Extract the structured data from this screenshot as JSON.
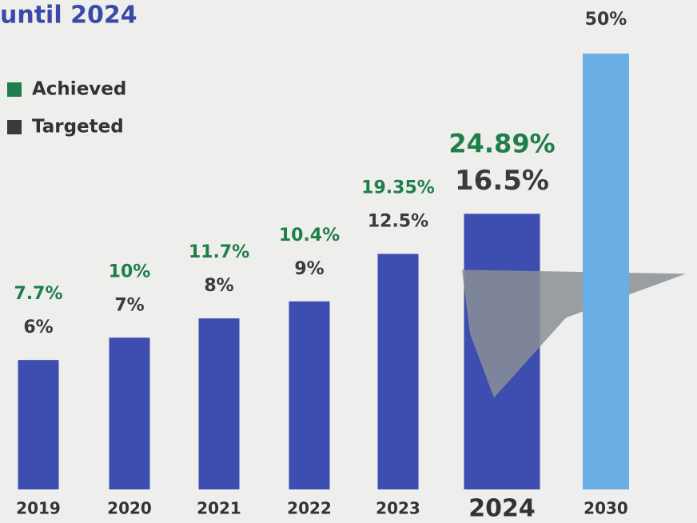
{
  "chart_data": {
    "type": "bar",
    "title": "until 2024",
    "categories": [
      "2019",
      "2020",
      "2021",
      "2022",
      "2023",
      "2024",
      "2030"
    ],
    "series": [
      {
        "name": "Achieved",
        "color": "#1f7f4a",
        "values": [
          7.7,
          10,
          11.7,
          10.4,
          19.35,
          24.89,
          null
        ],
        "value_labels": [
          "7.7%",
          "10%",
          "11.7%",
          "10.4%",
          "19.35%",
          "24.89%",
          null
        ]
      },
      {
        "name": "Targeted",
        "color": "#3a3a3a",
        "bar_colors": [
          "#3d4db0",
          "#3d4db0",
          "#3d4db0",
          "#3d4db0",
          "#3d4db0",
          "#3d4db0",
          "#6aaee6"
        ],
        "values": [
          6,
          7,
          8,
          9,
          12.5,
          16.5,
          50
        ],
        "value_labels": [
          "6%",
          "7%",
          "8%",
          "9%",
          "12.5%",
          "16.5%",
          "50%"
        ]
      }
    ],
    "log_scale": true,
    "ylim": [
      2.45,
      50
    ],
    "highlight_index": 5
  }
}
